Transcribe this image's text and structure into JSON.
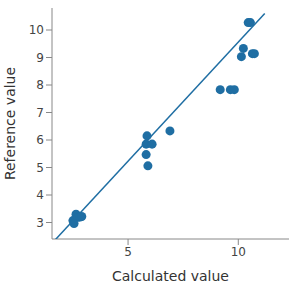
{
  "chart_data": {
    "type": "scatter",
    "x_label": "Calculated value",
    "y_label": "Reference value",
    "x": [
      2.5,
      2.64,
      2.73,
      2.82,
      2.55,
      2.9,
      5.86,
      5.82,
      6.09,
      5.82,
      5.9,
      6.9,
      9.18,
      9.64,
      9.82,
      10.23,
      10.14,
      10.45,
      10.55,
      10.64,
      10.73
    ],
    "values": [
      3.07,
      3.3,
      3.19,
      3.2,
      2.96,
      3.22,
      6.15,
      5.85,
      5.85,
      5.47,
      5.06,
      6.33,
      7.83,
      7.83,
      7.83,
      9.33,
      9.03,
      10.27,
      10.27,
      9.14,
      9.14
    ],
    "color": "#1f6ea3",
    "marker": "circle",
    "fit_line": {
      "x": [
        1.5,
        11.2
      ],
      "values": [
        2.2,
        10.6
      ],
      "color": "#1f6ea3"
    },
    "xlim": [
      1.55,
      12.3
    ],
    "ylim": [
      2.4,
      10.8
    ],
    "xticks": [
      5,
      10
    ],
    "yticks": [
      3,
      4,
      5,
      6,
      7,
      8,
      9,
      10
    ],
    "grid": false
  }
}
